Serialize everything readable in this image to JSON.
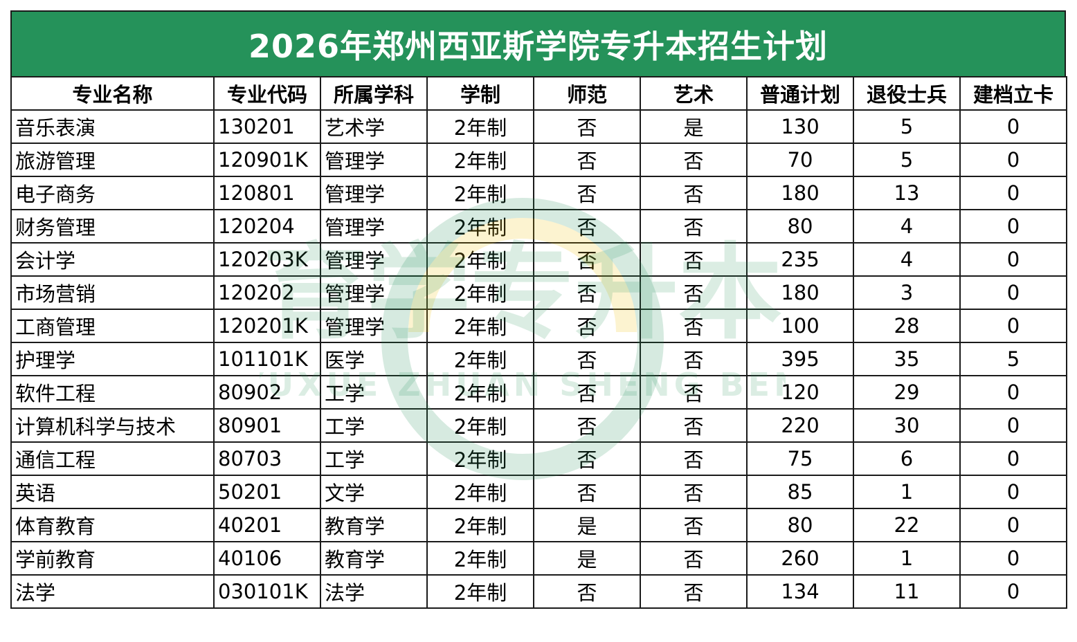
{
  "title": "2026年郑州西亚斯学院专升本招生计划",
  "columns": [
    "专业名称",
    "专业代码",
    "所属学科",
    "学制",
    "师范",
    "艺术",
    "普通计划",
    "退役士兵",
    "建档立卡"
  ],
  "rows": [
    [
      "音乐表演",
      "130201",
      "艺术学",
      "2年制",
      "否",
      "是",
      "130",
      "5",
      "0"
    ],
    [
      "旅游管理",
      "120901K",
      "管理学",
      "2年制",
      "否",
      "否",
      "70",
      "5",
      "0"
    ],
    [
      "电子商务",
      "120801",
      "管理学",
      "2年制",
      "否",
      "否",
      "180",
      "13",
      "0"
    ],
    [
      "财务管理",
      "120204",
      "管理学",
      "2年制",
      "否",
      "否",
      "80",
      "4",
      "0"
    ],
    [
      "会计学",
      "120203K",
      "管理学",
      "2年制",
      "否",
      "否",
      "235",
      "4",
      "0"
    ],
    [
      "市场营销",
      "120202",
      "管理学",
      "2年制",
      "否",
      "否",
      "180",
      "3",
      "0"
    ],
    [
      "工商管理",
      "120201K",
      "管理学",
      "2年制",
      "否",
      "否",
      "100",
      "28",
      "0"
    ],
    [
      "护理学",
      "101101K",
      "医学",
      "2年制",
      "否",
      "否",
      "395",
      "35",
      "5"
    ],
    [
      "软件工程",
      "80902",
      "工学",
      "2年制",
      "否",
      "否",
      "120",
      "29",
      "0"
    ],
    [
      "计算机科学与技术",
      "80901",
      "工学",
      "2年制",
      "否",
      "否",
      "220",
      "30",
      "0"
    ],
    [
      "通信工程",
      "80703",
      "工学",
      "2年制",
      "否",
      "否",
      "75",
      "6",
      "0"
    ],
    [
      "英语",
      "50201",
      "文学",
      "2年制",
      "否",
      "否",
      "85",
      "1",
      "0"
    ],
    [
      "体育教育",
      "40201",
      "教育学",
      "2年制",
      "是",
      "否",
      "80",
      "22",
      "0"
    ],
    [
      "学前教育",
      "40106",
      "教育学",
      "2年制",
      "是",
      "否",
      "260",
      "1",
      "0"
    ],
    [
      "法学",
      "030101K",
      "法学",
      "2年制",
      "否",
      "否",
      "134",
      "11",
      "0"
    ]
  ],
  "watermark": {
    "main": "育学专升本",
    "sub": "YUXUE ZHUAN SHENG BEN"
  },
  "colors": {
    "header_bg": "#25925a",
    "header_text": "#ffffff",
    "watermark_green": "#25925a",
    "watermark_yellow": "#f3c200"
  }
}
